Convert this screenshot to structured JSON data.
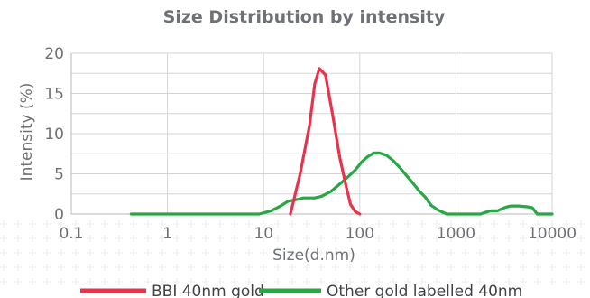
{
  "chart_data": {
    "type": "line",
    "title": "Size Distribution by intensity",
    "xlabel": "Size(d.nm)",
    "ylabel": "Intensity (%)",
    "x_scale": "log",
    "xlim": [
      0.1,
      10000
    ],
    "ylim": [
      0,
      20
    ],
    "x_ticks": [
      {
        "value": 0.1,
        "label": "0.1"
      },
      {
        "value": 1,
        "label": "1"
      },
      {
        "value": 10,
        "label": "10"
      },
      {
        "value": 100,
        "label": "100"
      },
      {
        "value": 1000,
        "label": "1000"
      },
      {
        "value": 10000,
        "label": "10000"
      }
    ],
    "y_ticks": [
      {
        "value": 0,
        "label": "0"
      },
      {
        "value": 5,
        "label": "5"
      },
      {
        "value": 10,
        "label": "10"
      },
      {
        "value": 15,
        "label": "15"
      },
      {
        "value": 20,
        "label": "20"
      }
    ],
    "grid": true,
    "legend_position": "bottom",
    "series": [
      {
        "name": "BBI 40nm gold",
        "color": "#e8334a",
        "points": [
          [
            19,
            0
          ],
          [
            24,
            5
          ],
          [
            30,
            11
          ],
          [
            34,
            16.2
          ],
          [
            38,
            18.1
          ],
          [
            44,
            17.3
          ],
          [
            52,
            12.5
          ],
          [
            62,
            7
          ],
          [
            72,
            3.5
          ],
          [
            80,
            1.2
          ],
          [
            90,
            0.3
          ],
          [
            100,
            0
          ]
        ]
      },
      {
        "name": "Other gold labelled 40nm",
        "color": "#28a745",
        "points": [
          [
            0.42,
            0
          ],
          [
            9,
            0
          ],
          [
            12,
            0.4
          ],
          [
            15,
            1
          ],
          [
            18,
            1.6
          ],
          [
            22,
            1.8
          ],
          [
            26,
            2
          ],
          [
            34,
            2
          ],
          [
            40,
            2.2
          ],
          [
            50,
            2.8
          ],
          [
            60,
            3.6
          ],
          [
            75,
            4.6
          ],
          [
            90,
            5.5
          ],
          [
            105,
            6.5
          ],
          [
            120,
            7.1
          ],
          [
            140,
            7.6
          ],
          [
            160,
            7.6
          ],
          [
            190,
            7.3
          ],
          [
            220,
            6.7
          ],
          [
            260,
            5.8
          ],
          [
            310,
            4.7
          ],
          [
            360,
            3.8
          ],
          [
            420,
            2.8
          ],
          [
            480,
            2.1
          ],
          [
            550,
            1.1
          ],
          [
            650,
            0.5
          ],
          [
            800,
            0
          ],
          [
            1800,
            0
          ],
          [
            2000,
            0.2
          ],
          [
            2300,
            0.4
          ],
          [
            2700,
            0.4
          ],
          [
            3200,
            0.8
          ],
          [
            3700,
            1
          ],
          [
            4500,
            1
          ],
          [
            5500,
            0.9
          ],
          [
            6200,
            0.8
          ],
          [
            7000,
            0
          ],
          [
            10000,
            0
          ]
        ]
      }
    ]
  }
}
